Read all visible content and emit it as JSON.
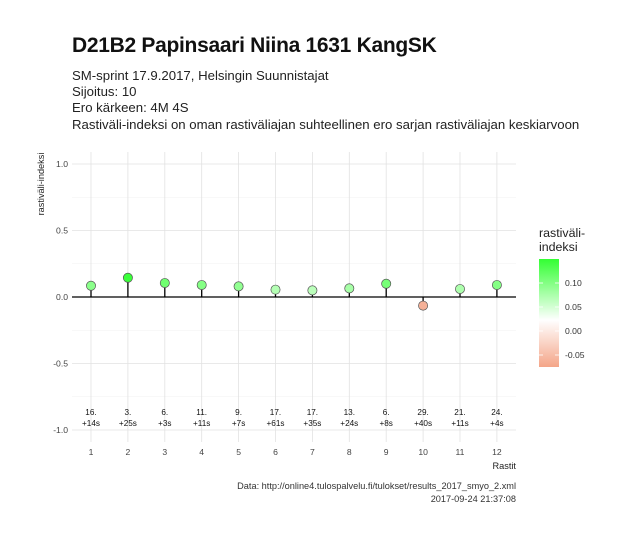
{
  "header": {
    "title": "D21B2 Papinsaari Niina 1631 KangSK",
    "subtitle_lines": [
      "SM-sprint 17.9.2017, Helsingin Suunnistajat",
      "Sijoitus: 10",
      "Ero kärkeen: 4M 4S",
      "Rastiväli-indeksi on oman rastiväliajan suhteellinen ero sarjan rastiväliajan keskiarvoon"
    ]
  },
  "caption": {
    "line1": "Data: http://online4.tulospalvelu.fi/tulokset/results_2017_smyo_2.xml",
    "line2": "2017-09-24 21:37:08"
  },
  "legend": {
    "title_line1": "rastiväli-",
    "title_line2": "indeksi",
    "ticks": [
      "0.10",
      "0.05",
      "0.00",
      "-0.05"
    ],
    "color_high": "#33ff33",
    "color_mid": "#ffffff",
    "color_low": "#f4a588"
  },
  "chart_data": {
    "type": "scatter",
    "xlabel": "Rastit",
    "ylabel": "rastiväli-indeksi",
    "ylim": [
      -1.0,
      1.0
    ],
    "yticks": [
      "1.0",
      "0.5",
      "0.0",
      "-0.5",
      "-1.0"
    ],
    "x": [
      1,
      2,
      3,
      4,
      5,
      6,
      7,
      8,
      9,
      10,
      11,
      12
    ],
    "values": [
      0.085,
      0.145,
      0.105,
      0.09,
      0.08,
      0.055,
      0.05,
      0.065,
      0.1,
      -0.065,
      0.06,
      0.09
    ],
    "position_labels": [
      "16.",
      "3.",
      "6.",
      "11.",
      "9.",
      "17.",
      "17.",
      "13.",
      "6.",
      "29.",
      "21.",
      "24."
    ],
    "diff_labels": [
      "+14s",
      "+25s",
      "+3s",
      "+11s",
      "+7s",
      "+61s",
      "+35s",
      "+24s",
      "+8s",
      "+40s",
      "+11s",
      "+4s"
    ],
    "grid": true,
    "legend_position": "right"
  }
}
